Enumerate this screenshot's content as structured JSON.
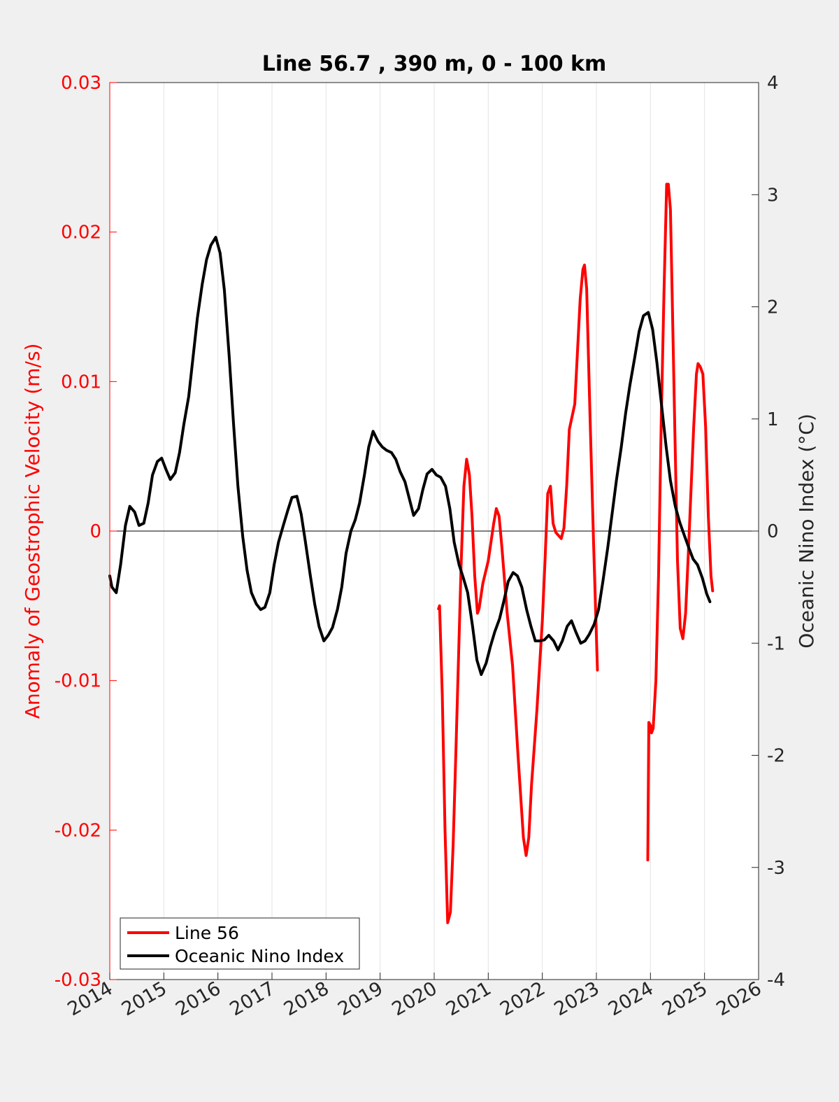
{
  "chart_data": {
    "type": "line",
    "title": "Line 56.7 , 390 m, 0 - 100 km",
    "xlabel": "",
    "ylabel_left": "Anomaly of Geostrophic Velocity (m/s)",
    "ylabel_right": "Oceanic Nino Index (°C)",
    "xlim": [
      2014,
      2026
    ],
    "ylim_left": [
      -0.03,
      0.03
    ],
    "ylim_right": [
      -4,
      4
    ],
    "xticks": [
      "2014",
      "2015",
      "2016",
      "2017",
      "2018",
      "2019",
      "2020",
      "2021",
      "2022",
      "2023",
      "2024",
      "2025",
      "2026"
    ],
    "yticks_left": [
      "-0.03",
      "-0.02",
      "-0.01",
      "0",
      "0.01",
      "0.02",
      "0.03"
    ],
    "yticks_right": [
      "-4",
      "-3",
      "-2",
      "-1",
      "0",
      "1",
      "2",
      "3",
      "4"
    ],
    "grid": "vertical",
    "legend_placement": "bottom-left",
    "colors": {
      "line56": "#ff0000",
      "oni": "#000000",
      "left_axis": "#ff0000",
      "right_axis": "#000000"
    },
    "series": [
      {
        "name": "Line 56",
        "axis": "left",
        "color": "#ff0000",
        "segments": [
          [
            [
              2020.08,
              -0.0052
            ],
            [
              2020.1,
              -0.005
            ],
            [
              2020.15,
              -0.011
            ],
            [
              2020.2,
              -0.02
            ],
            [
              2020.25,
              -0.0262
            ],
            [
              2020.3,
              -0.0255
            ],
            [
              2020.35,
              -0.021
            ],
            [
              2020.4,
              -0.015
            ],
            [
              2020.45,
              -0.0085
            ],
            [
              2020.5,
              -0.002
            ],
            [
              2020.55,
              0.003
            ],
            [
              2020.6,
              0.0048
            ],
            [
              2020.65,
              0.0038
            ],
            [
              2020.7,
              0.001
            ],
            [
              2020.75,
              -0.003
            ],
            [
              2020.8,
              -0.0055
            ],
            [
              2020.83,
              -0.0052
            ],
            [
              2020.9,
              -0.0035
            ],
            [
              2021.0,
              -0.002
            ],
            [
              2021.1,
              0.0005
            ],
            [
              2021.15,
              0.0015
            ],
            [
              2021.2,
              0.001
            ],
            [
              2021.25,
              -0.001
            ],
            [
              2021.35,
              -0.0055
            ],
            [
              2021.45,
              -0.009
            ],
            [
              2021.55,
              -0.015
            ],
            [
              2021.65,
              -0.0205
            ],
            [
              2021.7,
              -0.0217
            ],
            [
              2021.75,
              -0.0205
            ],
            [
              2021.8,
              -0.017
            ],
            [
              2021.9,
              -0.012
            ],
            [
              2022.0,
              -0.006
            ],
            [
              2022.05,
              -0.002
            ],
            [
              2022.1,
              0.0025
            ],
            [
              2022.15,
              0.003
            ],
            [
              2022.2,
              0.0005
            ],
            [
              2022.25,
              -0.0001
            ],
            [
              2022.35,
              -0.0005
            ],
            [
              2022.4,
              0.0002
            ],
            [
              2022.45,
              0.003
            ],
            [
              2022.5,
              0.0068
            ],
            [
              2022.6,
              0.0085
            ],
            [
              2022.7,
              0.0155
            ],
            [
              2022.75,
              0.0175
            ],
            [
              2022.78,
              0.0178
            ],
            [
              2022.82,
              0.0162
            ],
            [
              2022.88,
              0.008
            ],
            [
              2022.95,
              -0.001
            ],
            [
              2023.02,
              -0.0093
            ]
          ],
          [
            [
              2023.95,
              -0.022
            ],
            [
              2023.97,
              -0.0128
            ],
            [
              2024.0,
              -0.013
            ],
            [
              2024.02,
              -0.0135
            ],
            [
              2024.05,
              -0.0132
            ],
            [
              2024.1,
              -0.01
            ],
            [
              2024.15,
              -0.003
            ],
            [
              2024.2,
              0.0075
            ],
            [
              2024.25,
              0.016
            ],
            [
              2024.3,
              0.0232
            ],
            [
              2024.33,
              0.0232
            ],
            [
              2024.37,
              0.0215
            ],
            [
              2024.4,
              0.016
            ],
            [
              2024.45,
              0.007
            ],
            [
              2024.5,
              -0.002
            ],
            [
              2024.55,
              -0.0065
            ],
            [
              2024.6,
              -0.0072
            ],
            [
              2024.65,
              -0.0055
            ],
            [
              2024.7,
              -0.0015
            ],
            [
              2024.8,
              0.007
            ],
            [
              2024.85,
              0.0105
            ],
            [
              2024.88,
              0.0112
            ],
            [
              2024.92,
              0.011
            ],
            [
              2024.97,
              0.0105
            ],
            [
              2025.02,
              0.007
            ],
            [
              2025.07,
              0.001
            ],
            [
              2025.12,
              -0.003
            ],
            [
              2025.15,
              -0.004
            ]
          ]
        ]
      },
      {
        "name": "Oceanic Nino Index",
        "axis": "right",
        "color": "#000000",
        "segments": [
          [
            [
              2014.0,
              -0.4
            ],
            [
              2014.04,
              -0.5
            ],
            [
              2014.12,
              -0.55
            ],
            [
              2014.2,
              -0.3
            ],
            [
              2014.29,
              0.05
            ],
            [
              2014.37,
              0.22
            ],
            [
              2014.46,
              0.17
            ],
            [
              2014.54,
              0.05
            ],
            [
              2014.63,
              0.07
            ],
            [
              2014.71,
              0.25
            ],
            [
              2014.79,
              0.5
            ],
            [
              2014.88,
              0.62
            ],
            [
              2014.96,
              0.65
            ],
            [
              2015.04,
              0.55
            ],
            [
              2015.12,
              0.46
            ],
            [
              2015.21,
              0.52
            ],
            [
              2015.29,
              0.7
            ],
            [
              2015.37,
              0.95
            ],
            [
              2015.46,
              1.2
            ],
            [
              2015.54,
              1.55
            ],
            [
              2015.62,
              1.9
            ],
            [
              2015.71,
              2.2
            ],
            [
              2015.79,
              2.42
            ],
            [
              2015.87,
              2.55
            ],
            [
              2015.96,
              2.62
            ],
            [
              2016.04,
              2.48
            ],
            [
              2016.12,
              2.15
            ],
            [
              2016.21,
              1.55
            ],
            [
              2016.29,
              0.95
            ],
            [
              2016.37,
              0.4
            ],
            [
              2016.46,
              -0.05
            ],
            [
              2016.54,
              -0.35
            ],
            [
              2016.62,
              -0.55
            ],
            [
              2016.71,
              -0.65
            ],
            [
              2016.79,
              -0.7
            ],
            [
              2016.87,
              -0.68
            ],
            [
              2016.96,
              -0.55
            ],
            [
              2017.04,
              -0.3
            ],
            [
              2017.12,
              -0.1
            ],
            [
              2017.21,
              0.05
            ],
            [
              2017.29,
              0.18
            ],
            [
              2017.37,
              0.3
            ],
            [
              2017.46,
              0.31
            ],
            [
              2017.54,
              0.15
            ],
            [
              2017.62,
              -0.1
            ],
            [
              2017.71,
              -0.4
            ],
            [
              2017.79,
              -0.65
            ],
            [
              2017.87,
              -0.85
            ],
            [
              2017.96,
              -0.98
            ],
            [
              2018.04,
              -0.93
            ],
            [
              2018.12,
              -0.86
            ],
            [
              2018.21,
              -0.7
            ],
            [
              2018.29,
              -0.5
            ],
            [
              2018.37,
              -0.2
            ],
            [
              2018.46,
              0.0
            ],
            [
              2018.54,
              0.1
            ],
            [
              2018.62,
              0.25
            ],
            [
              2018.71,
              0.5
            ],
            [
              2018.79,
              0.75
            ],
            [
              2018.87,
              0.89
            ],
            [
              2018.96,
              0.8
            ],
            [
              2019.04,
              0.75
            ],
            [
              2019.12,
              0.72
            ],
            [
              2019.21,
              0.7
            ],
            [
              2019.29,
              0.64
            ],
            [
              2019.37,
              0.53
            ],
            [
              2019.46,
              0.44
            ],
            [
              2019.54,
              0.29
            ],
            [
              2019.62,
              0.14
            ],
            [
              2019.71,
              0.2
            ],
            [
              2019.79,
              0.37
            ],
            [
              2019.87,
              0.51
            ],
            [
              2019.96,
              0.55
            ],
            [
              2020.04,
              0.5
            ],
            [
              2020.12,
              0.48
            ],
            [
              2020.21,
              0.4
            ],
            [
              2020.29,
              0.2
            ],
            [
              2020.37,
              -0.1
            ],
            [
              2020.46,
              -0.3
            ],
            [
              2020.54,
              -0.42
            ],
            [
              2020.62,
              -0.55
            ],
            [
              2020.71,
              -0.85
            ],
            [
              2020.79,
              -1.15
            ],
            [
              2020.87,
              -1.28
            ],
            [
              2020.96,
              -1.18
            ],
            [
              2021.04,
              -1.03
            ],
            [
              2021.12,
              -0.9
            ],
            [
              2021.21,
              -0.78
            ],
            [
              2021.29,
              -0.62
            ],
            [
              2021.37,
              -0.45
            ],
            [
              2021.46,
              -0.37
            ],
            [
              2021.54,
              -0.4
            ],
            [
              2021.62,
              -0.5
            ],
            [
              2021.71,
              -0.7
            ],
            [
              2021.79,
              -0.85
            ],
            [
              2021.87,
              -0.98
            ],
            [
              2021.96,
              -0.98
            ],
            [
              2022.04,
              -0.97
            ],
            [
              2022.12,
              -0.93
            ],
            [
              2022.21,
              -0.98
            ],
            [
              2022.29,
              -1.06
            ],
            [
              2022.37,
              -0.98
            ],
            [
              2022.46,
              -0.85
            ],
            [
              2022.54,
              -0.8
            ],
            [
              2022.62,
              -0.9
            ],
            [
              2022.71,
              -1.0
            ],
            [
              2022.79,
              -0.98
            ],
            [
              2022.87,
              -0.92
            ],
            [
              2022.96,
              -0.83
            ],
            [
              2023.04,
              -0.7
            ],
            [
              2023.12,
              -0.45
            ],
            [
              2023.21,
              -0.15
            ],
            [
              2023.29,
              0.15
            ],
            [
              2023.37,
              0.45
            ],
            [
              2023.46,
              0.75
            ],
            [
              2023.54,
              1.05
            ],
            [
              2023.62,
              1.3
            ],
            [
              2023.71,
              1.55
            ],
            [
              2023.79,
              1.78
            ],
            [
              2023.87,
              1.92
            ],
            [
              2023.96,
              1.95
            ],
            [
              2024.04,
              1.8
            ],
            [
              2024.12,
              1.5
            ],
            [
              2024.21,
              1.1
            ],
            [
              2024.29,
              0.75
            ],
            [
              2024.37,
              0.45
            ],
            [
              2024.46,
              0.22
            ],
            [
              2024.54,
              0.08
            ],
            [
              2024.62,
              -0.03
            ],
            [
              2024.71,
              -0.15
            ],
            [
              2024.79,
              -0.25
            ],
            [
              2024.87,
              -0.3
            ],
            [
              2024.96,
              -0.42
            ],
            [
              2025.04,
              -0.56
            ],
            [
              2025.1,
              -0.63
            ]
          ]
        ]
      }
    ],
    "legend": [
      {
        "label": "Line 56",
        "color": "#ff0000"
      },
      {
        "label": "Oceanic Nino Index",
        "color": "#000000"
      }
    ]
  }
}
